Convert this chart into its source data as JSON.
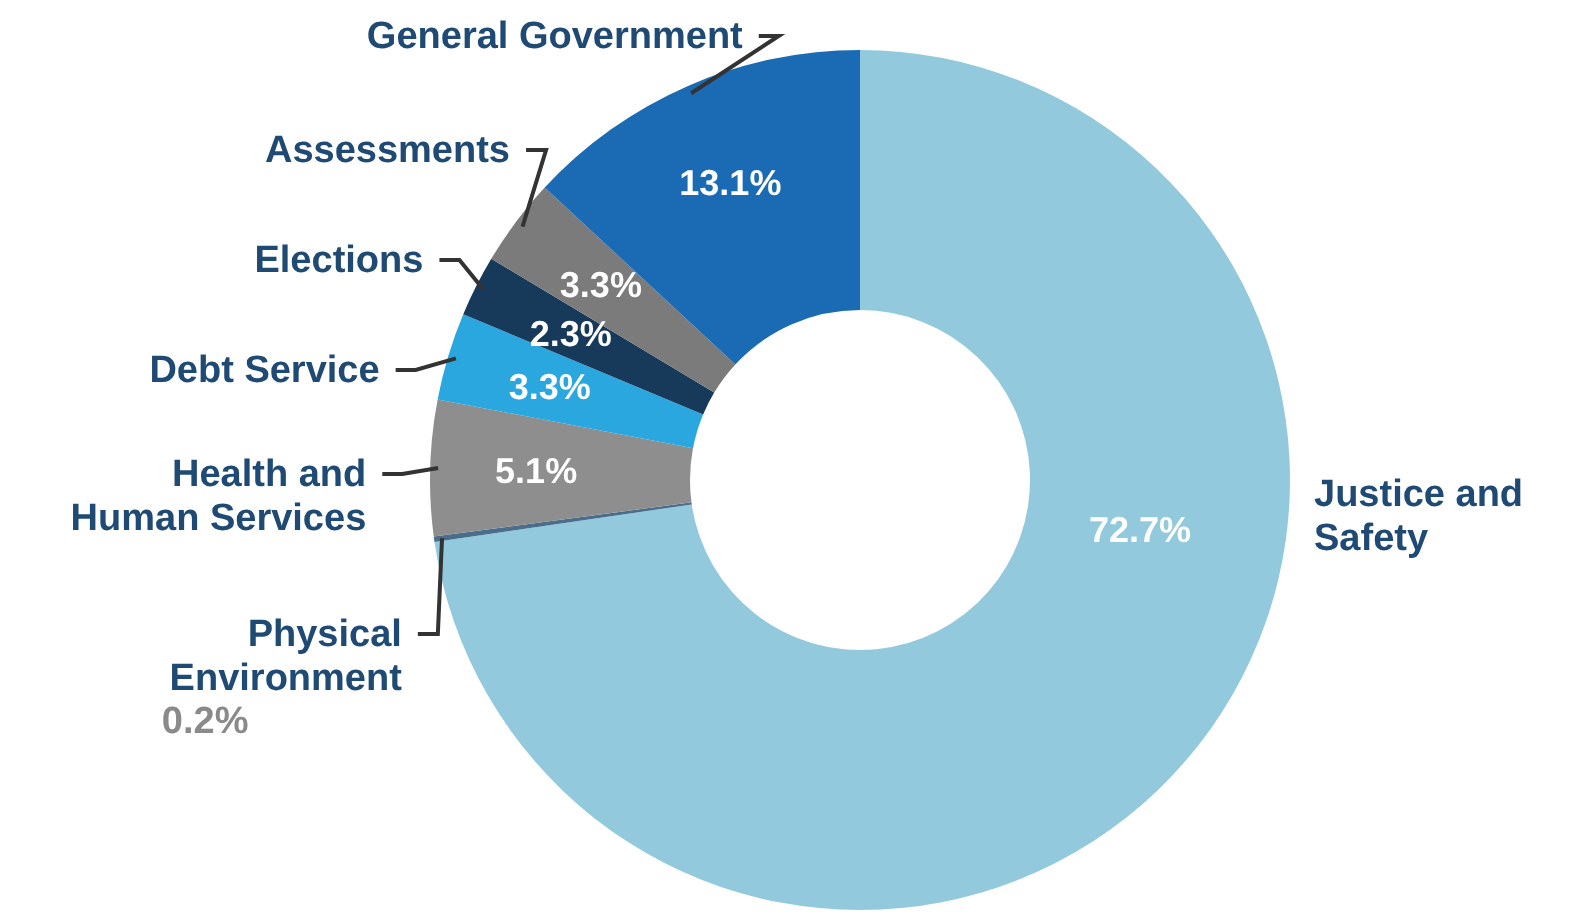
{
  "chart_data": {
    "type": "donut",
    "categories": [
      "Justice and Safety",
      "Physical Environment",
      "Health and Human Services",
      "Debt Service",
      "Elections",
      "Assessments",
      "General Government"
    ],
    "values": [
      72.7,
      0.2,
      5.1,
      3.3,
      2.3,
      3.3,
      13.1
    ],
    "colors": [
      "#93c9dc",
      "#4a6d8c",
      "#8e8e8e",
      "#2aa7de",
      "#17395a",
      "#7b7b7b",
      "#1b6bb4"
    ],
    "value_labels": [
      "72.7%",
      "0.2%",
      "5.1%",
      "3.3%",
      "2.3%",
      "3.3%",
      "13.1%"
    ]
  }
}
